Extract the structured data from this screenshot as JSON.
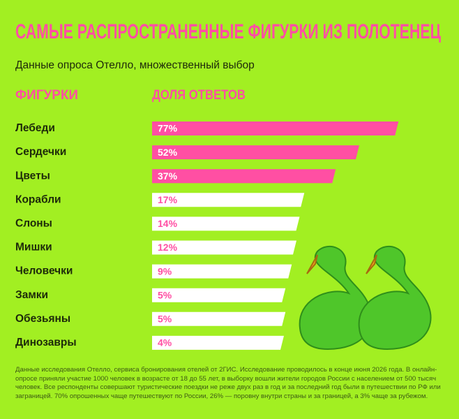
{
  "chart_data": {
    "type": "bar",
    "orientation": "horizontal",
    "title": "САМЫЕ РАСПРОСТРАНЕННЫЕ ФИГУРКИ ИЗ ПОЛОТЕНЕЦ",
    "subtitle": "Данные опроса Отелло, множественный выбор",
    "category_header": "ФИГУРКИ",
    "value_header": "ДОЛЯ ОТВЕТОВ",
    "categories": [
      "Лебеди",
      "Сердечки",
      "Цветы",
      "Корабли",
      "Слоны",
      "Мишки",
      "Человечки",
      "Замки",
      "Обезьяны",
      "Динозавры"
    ],
    "values": [
      77,
      52,
      37,
      17,
      14,
      12,
      9,
      5,
      5,
      4
    ],
    "value_labels": [
      "77%",
      "52%",
      "37%",
      "17%",
      "14%",
      "12%",
      "9%",
      "5%",
      "5%",
      "4%"
    ],
    "colors": [
      "#ff4fa3",
      "#ff4fa3",
      "#ff4fa3",
      "#ffffff",
      "#ffffff",
      "#ffffff",
      "#ffffff",
      "#ffffff",
      "#ffffff",
      "#ffffff"
    ],
    "label_colors": [
      "#ffffff",
      "#ffffff",
      "#ffffff",
      "#ff4fa3",
      "#ff4fa3",
      "#ff4fa3",
      "#ff4fa3",
      "#ff4fa3",
      "#ff4fa3",
      "#ff4fa3"
    ],
    "note": "Данные исследования Отелло, сервиса бронирования отелей от 2ГИС. Исследование проводилось в конце июня 2026 года. В онлайн-опросе приняли участие 1000 человек в возрасте от 18 до 55 лет, в выборку вошли жители городов России с населением от 500 тысяч человек. Все респонденты совершают туристические поездки не реже двух раз в год и за последний год были в путешествии по РФ или заграницей. 70% опрошенных чаще путешествуют по России, 26% — поровну внутри страны и за границей, а 3% чаще за рубежом."
  }
}
